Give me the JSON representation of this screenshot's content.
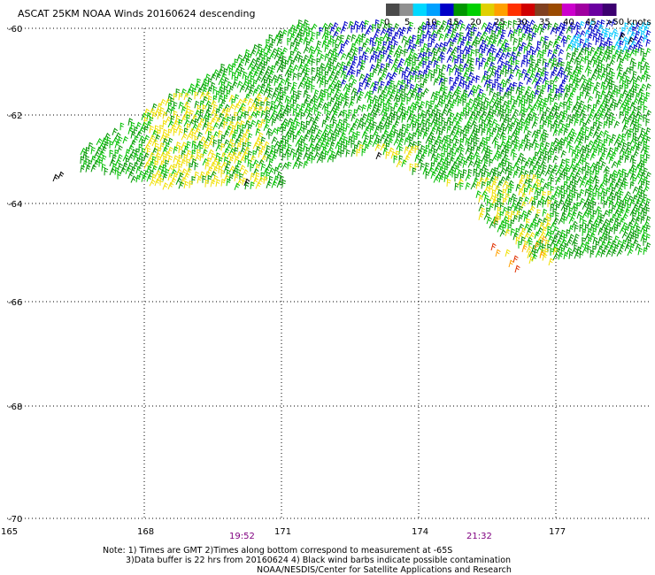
{
  "title": "ASCAT 25KM NOAA Winds 20160624 descending",
  "legend": {
    "labels": [
      "0",
      "5",
      "10",
      "15",
      "20",
      "25",
      "30",
      "35",
      "40",
      "45",
      ">50 knots"
    ],
    "colors": [
      "#4a4a4a",
      "#909090",
      "#00d8ff",
      "#00a0ff",
      "#0000c8",
      "#009600",
      "#00d000",
      "#e0d000",
      "#ffa000",
      "#ff3000",
      "#d00000",
      "#804020",
      "#9a4a00",
      "#cc00cc",
      "#a000a0",
      "#6a00a0",
      "#3c0070"
    ]
  },
  "lat_labels": [
    "-60",
    "-62",
    "-64",
    "-66",
    "-68",
    "-70"
  ],
  "lon_labels": [
    "165",
    "168",
    "171",
    "174",
    "177"
  ],
  "time_labels": [
    "19:52",
    "21:32"
  ],
  "notes": [
    "Note: 1) Times are GMT 2)Times along bottom correspond to measurement at -65S",
    "3)Data buffer is 22 hrs from 20160624 4) Black wind barbs indicate possible contamination",
    "NOAA/NESDIS/Center for Satellite Applications and Research"
  ],
  "barb_colors": {
    "calm": "#00c8ff",
    "light": "#0000c8",
    "moderate": "#009600",
    "fresh": "#00c000",
    "strong": "#f0e000",
    "gale": "#ffa000",
    "storm": "#e03000",
    "contaminated": "#000000"
  }
}
